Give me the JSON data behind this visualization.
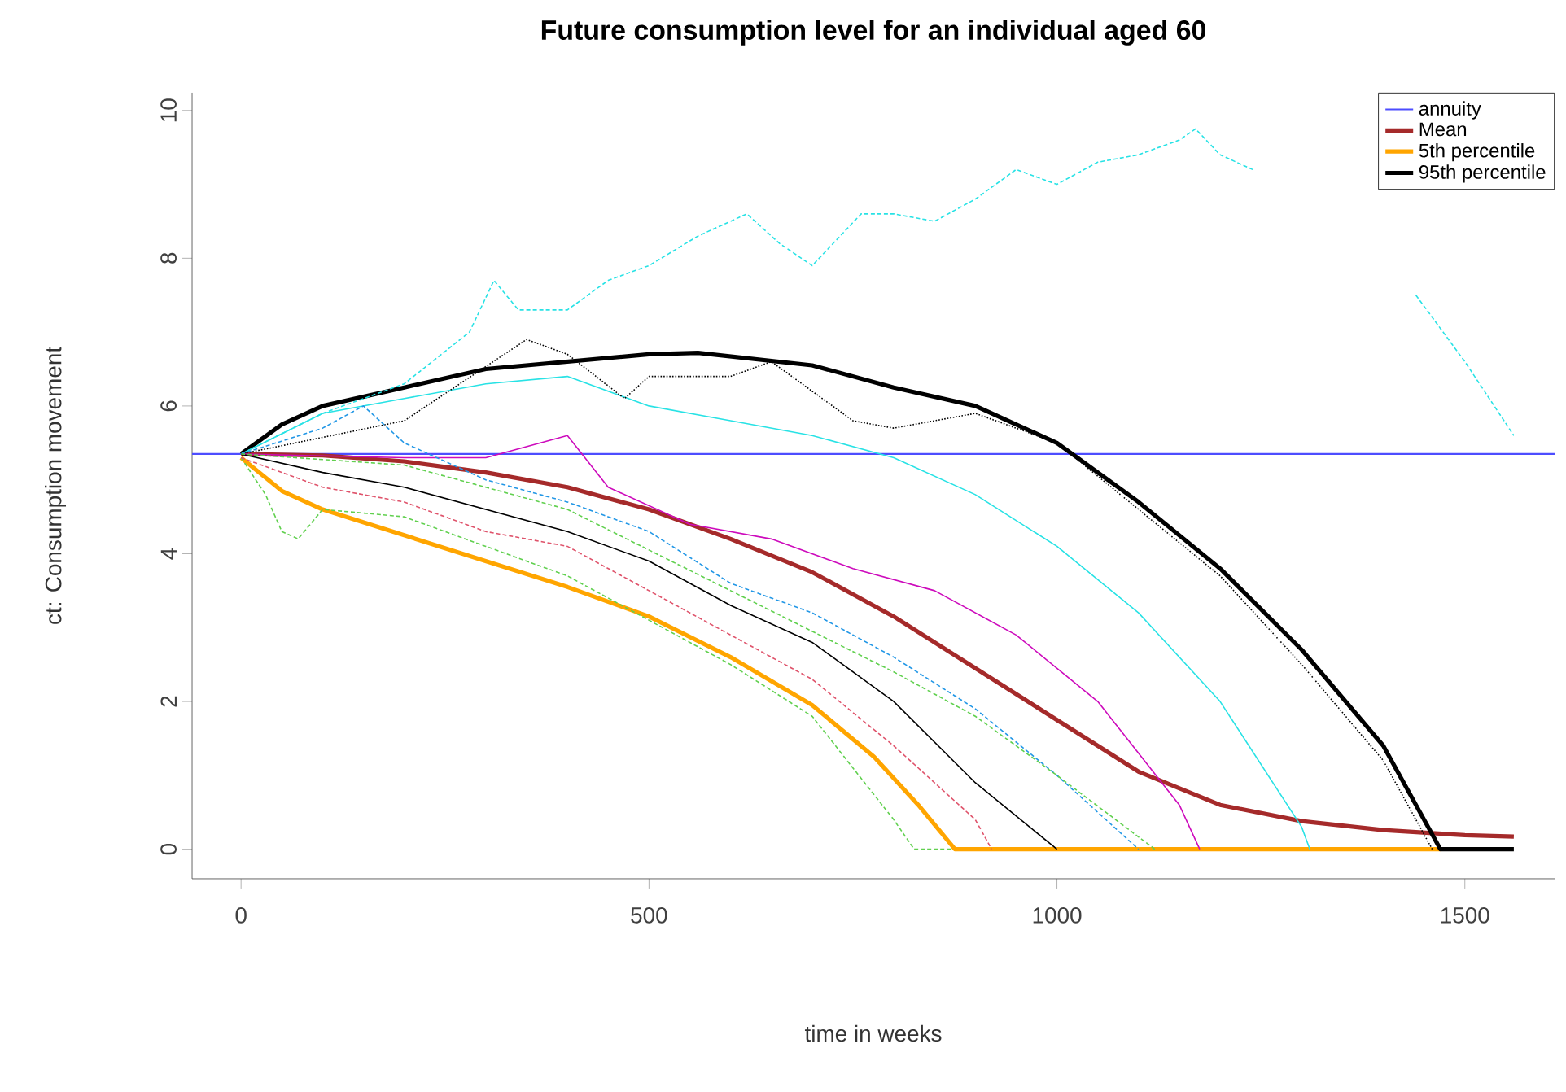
{
  "chart_data": {
    "type": "line",
    "title": "Future consumption level for an individual aged 60",
    "xlabel": "time in weeks",
    "ylabel": "ct: Consumption movement",
    "xlim": [
      -60,
      1610
    ],
    "ylim": [
      -0.4,
      10.24
    ],
    "xticks": [
      0,
      500,
      1000,
      1500
    ],
    "yticks": [
      0,
      2,
      4,
      6,
      8,
      10
    ],
    "grid": false,
    "legend": "top right",
    "marker": "none",
    "ref_lines": [
      {
        "axis": "y",
        "value": 5.35,
        "label": "annuity",
        "color": "#4d4dff"
      }
    ],
    "series": [
      {
        "color": "#28e2e5",
        "line_style": "dashed",
        "x": [
          0,
          100,
          200,
          280,
          310,
          340,
          400,
          450,
          500,
          560,
          620,
          660,
          700,
          760,
          800,
          850,
          900,
          950,
          1000,
          1050,
          1100,
          1150,
          1170,
          1200,
          1240,
          1300,
          1400,
          1440,
          1500,
          1560
        ],
        "values": [
          5.35,
          5.9,
          6.3,
          7.0,
          7.7,
          7.3,
          7.3,
          7.7,
          7.9,
          8.3,
          8.6,
          8.2,
          7.9,
          8.6,
          8.6,
          8.5,
          8.8,
          9.2,
          9.0,
          9.3,
          9.4,
          9.6,
          9.75,
          9.4,
          9.2,
          null,
          null,
          7.5,
          6.6,
          5.6
        ]
      },
      {
        "color": "#28e2e5",
        "line_style": "solid",
        "x": [
          0,
          100,
          200,
          300,
          400,
          500,
          600,
          700,
          800,
          900,
          1000,
          1100,
          1200,
          1300,
          1310
        ],
        "values": [
          5.35,
          5.9,
          6.1,
          6.3,
          6.4,
          6.0,
          5.8,
          5.6,
          5.3,
          4.8,
          4.1,
          3.2,
          2.0,
          0.3,
          0
        ]
      },
      {
        "color": "#000000",
        "line_style": "dotted",
        "x": [
          0,
          200,
          350,
          400,
          470,
          500,
          600,
          650,
          700,
          750,
          800,
          900,
          1000,
          1100,
          1200,
          1300,
          1400,
          1460
        ],
        "values": [
          5.35,
          5.8,
          6.9,
          6.7,
          6.1,
          6.4,
          6.4,
          6.6,
          6.2,
          5.8,
          5.7,
          5.9,
          5.5,
          4.6,
          3.7,
          2.5,
          1.2,
          0
        ]
      },
      {
        "color": "#cd0bbc",
        "line_style": "solid",
        "x": [
          0,
          200,
          300,
          400,
          450,
          550,
          650,
          750,
          850,
          950,
          1050,
          1150,
          1175
        ],
        "values": [
          5.35,
          5.3,
          5.3,
          5.6,
          4.9,
          4.4,
          4.2,
          3.8,
          3.5,
          2.9,
          2.0,
          0.6,
          0
        ]
      },
      {
        "color": "#61d04f",
        "line_style": "dashed",
        "x": [
          0,
          30,
          50,
          70,
          100,
          200,
          300,
          400,
          500,
          600,
          700,
          800,
          825,
          870
        ],
        "values": [
          5.3,
          4.8,
          4.3,
          4.2,
          4.6,
          4.5,
          4.1,
          3.7,
          3.1,
          2.5,
          1.8,
          0.4,
          0,
          0
        ]
      },
      {
        "color": "#2297e6",
        "line_style": "dashed",
        "x": [
          0,
          100,
          150,
          200,
          300,
          400,
          500,
          600,
          700,
          800,
          900,
          1000,
          1100
        ],
        "values": [
          5.35,
          5.7,
          6.0,
          5.5,
          5.0,
          4.7,
          4.3,
          3.6,
          3.2,
          2.6,
          1.9,
          1.0,
          0
        ]
      },
      {
        "color": "#df536b",
        "line_style": "dashed",
        "x": [
          0,
          100,
          200,
          300,
          400,
          500,
          600,
          700,
          800,
          900,
          920
        ],
        "values": [
          5.3,
          4.9,
          4.7,
          4.3,
          4.1,
          3.5,
          2.9,
          2.3,
          1.4,
          0.4,
          0
        ]
      },
      {
        "color": "#000000",
        "line_style": "solid",
        "x": [
          0,
          100,
          200,
          300,
          400,
          500,
          600,
          700,
          800,
          900,
          1000
        ],
        "values": [
          5.35,
          5.1,
          4.9,
          4.6,
          4.3,
          3.9,
          3.3,
          2.8,
          2.0,
          0.9,
          0
        ]
      },
      {
        "color": "#61d04f",
        "line_style": "dashed",
        "x": [
          0,
          200,
          400,
          600,
          800,
          900,
          1000,
          1120
        ],
        "values": [
          5.35,
          5.2,
          4.6,
          3.5,
          2.4,
          1.8,
          1.0,
          0
        ]
      },
      {
        "name": "Mean",
        "color": "#a52a2a",
        "line_style": "solid",
        "x": [
          0,
          100,
          200,
          300,
          400,
          500,
          600,
          700,
          800,
          900,
          1000,
          1100,
          1200,
          1300,
          1400,
          1500,
          1560
        ],
        "values": [
          5.35,
          5.33,
          5.25,
          5.1,
          4.9,
          4.6,
          4.2,
          3.75,
          3.15,
          2.45,
          1.75,
          1.05,
          0.6,
          0.38,
          0.26,
          0.19,
          0.17
        ]
      },
      {
        "name": "5th percentile",
        "color": "#ffa500",
        "line_style": "solid",
        "x": [
          0,
          50,
          100,
          200,
          300,
          400,
          500,
          600,
          700,
          776,
          830,
          875,
          1470
        ],
        "values": [
          5.3,
          4.85,
          4.6,
          4.25,
          3.9,
          3.55,
          3.15,
          2.6,
          1.95,
          1.25,
          0.6,
          0,
          0
        ]
      },
      {
        "name": "95th percentile",
        "color": "#000000",
        "line_style": "solid",
        "x": [
          0,
          50,
          100,
          200,
          300,
          400,
          500,
          560,
          700,
          800,
          900,
          1000,
          1100,
          1200,
          1300,
          1400,
          1470,
          1560
        ],
        "values": [
          5.35,
          5.75,
          6.0,
          6.25,
          6.5,
          6.6,
          6.7,
          6.72,
          6.55,
          6.25,
          6.0,
          5.5,
          4.7,
          3.8,
          2.7,
          1.4,
          0,
          0
        ]
      }
    ]
  }
}
